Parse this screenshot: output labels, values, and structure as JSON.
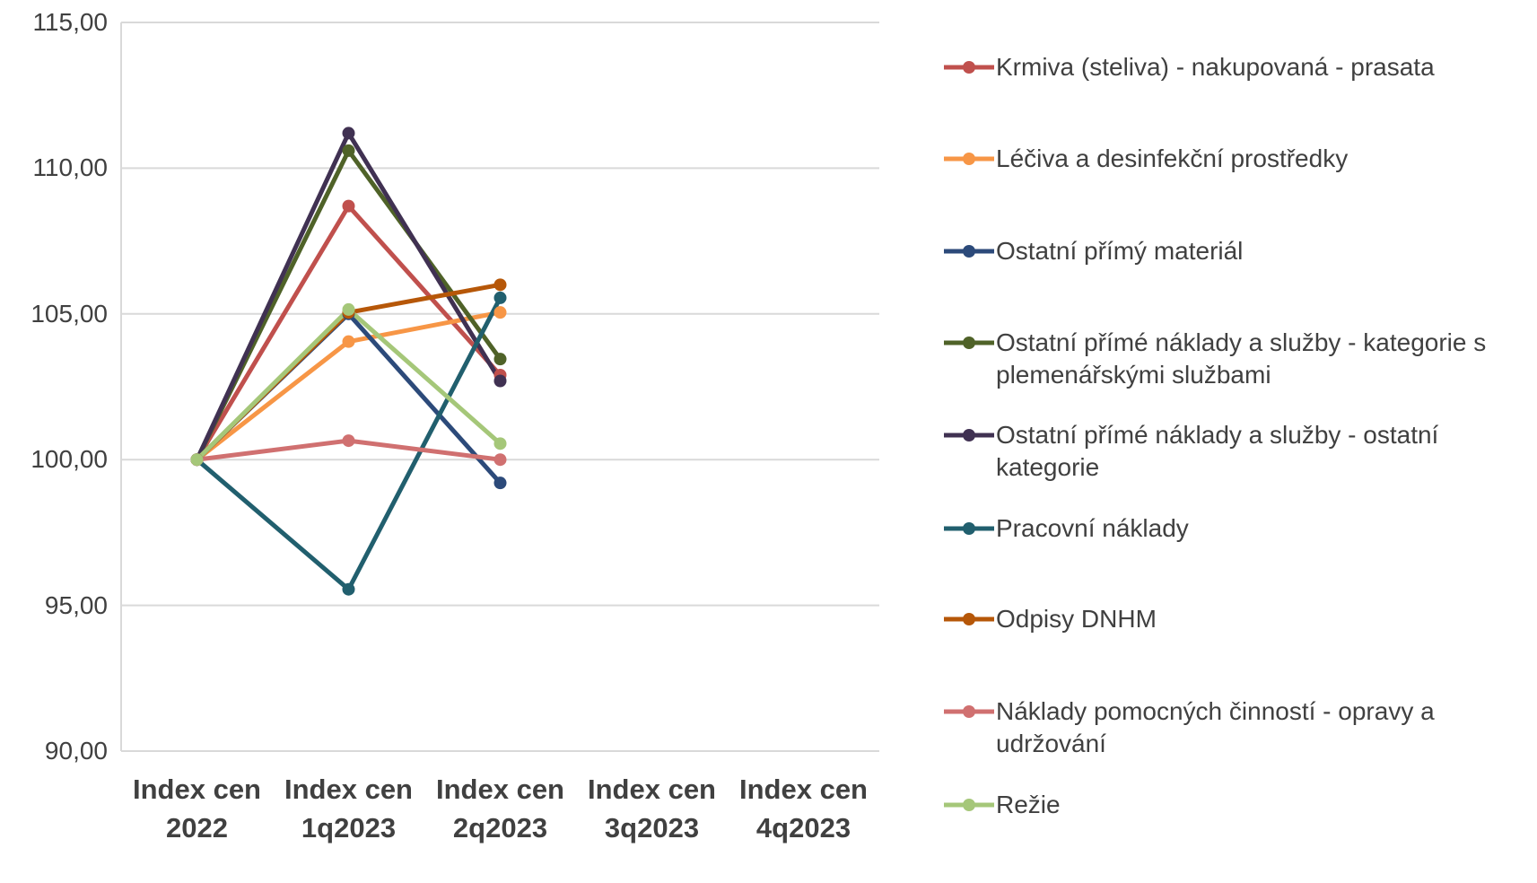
{
  "chart_data": {
    "type": "line",
    "categories": [
      "Index cen 2022",
      "Index cen 1q2023",
      "Index cen 2q2023",
      "Index cen 3q2023",
      "Index cen 4q2023"
    ],
    "series": [
      {
        "name": "Krmiva (steliva) - nakupovaná - prasata",
        "color": "#c0504d",
        "values": [
          100,
          108.7,
          102.9,
          null,
          null
        ]
      },
      {
        "name": "Léčiva a desinfekční prostředky",
        "color": "#f79646",
        "values": [
          100,
          104.05,
          105.05,
          null,
          null
        ]
      },
      {
        "name": "Ostatní přímý materiál",
        "color": "#2c4a7a",
        "values": [
          100,
          105.0,
          99.2,
          null,
          null
        ]
      },
      {
        "name": "Ostatní přímé náklady a služby - kategorie s plemenářskými službami",
        "color": "#4f6228",
        "values": [
          100,
          110.6,
          103.45,
          null,
          null
        ]
      },
      {
        "name": "Ostatní přímé náklady a služby - ostatní kategorie",
        "color": "#403152",
        "values": [
          100,
          111.2,
          102.7,
          null,
          null
        ]
      },
      {
        "name": "Pracovní náklady",
        "color": "#215f6e",
        "values": [
          100,
          95.55,
          105.55,
          null,
          null
        ]
      },
      {
        "name": "Odpisy DNHM",
        "color": "#b65708",
        "values": [
          100,
          105.05,
          106.0,
          null,
          null
        ]
      },
      {
        "name": "Náklady pomocných činností - opravy a udržování",
        "color": "#d07070",
        "values": [
          100,
          100.65,
          100.0,
          null,
          null
        ]
      },
      {
        "name": "Režie",
        "color": "#a5c779",
        "values": [
          100,
          105.15,
          100.55,
          null,
          null
        ]
      }
    ],
    "ylim": [
      90,
      115
    ],
    "yticks": [
      {
        "value": 90,
        "label": "90,00"
      },
      {
        "value": 95,
        "label": "95,00"
      },
      {
        "value": 100,
        "label": "100,00"
      },
      {
        "value": 105,
        "label": "105,00"
      },
      {
        "value": 110,
        "label": "110,00"
      },
      {
        "value": 115,
        "label": "115,00"
      }
    ],
    "grid": true,
    "legend": "right"
  }
}
